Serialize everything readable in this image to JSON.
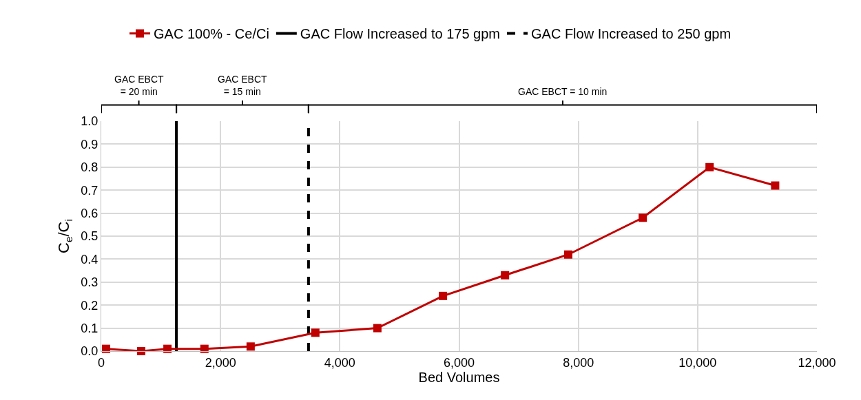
{
  "chart_data": {
    "type": "line",
    "xlabel": "Bed Volumes",
    "ylabel": "C$_{e}$/C$_{i}$",
    "x": [
      80,
      670,
      1110,
      1730,
      2505,
      3590,
      4630,
      5730,
      6770,
      7830,
      9080,
      10200,
      11300
    ],
    "series": [
      {
        "name": "GAC 100% - Ce/Ci",
        "color": "#c00000",
        "values": [
          0.01,
          0.0,
          0.01,
          0.01,
          0.02,
          0.08,
          0.1,
          0.24,
          0.33,
          0.42,
          0.58,
          0.8,
          0.72
        ]
      }
    ],
    "xlim": [
      0,
      12000
    ],
    "xticks": [
      {
        "value": 0,
        "label": "0"
      },
      {
        "value": 2000,
        "label": "2,000"
      },
      {
        "value": 4000,
        "label": "4,000"
      },
      {
        "value": 6000,
        "label": "6,000"
      },
      {
        "value": 8000,
        "label": "8,000"
      },
      {
        "value": 10000,
        "label": "10,000"
      },
      {
        "value": 12000,
        "label": "12,000"
      }
    ],
    "ylim": [
      0,
      1.0
    ],
    "yticks": [
      {
        "value": 0,
        "label": "0.0"
      },
      {
        "value": 0.1,
        "label": "0.1"
      },
      {
        "value": 0.2,
        "label": "0.2"
      },
      {
        "value": 0.3,
        "label": "0.3"
      },
      {
        "value": 0.4,
        "label": "0.4"
      },
      {
        "value": 0.5,
        "label": "0.5"
      },
      {
        "value": 0.6,
        "label": "0.6"
      },
      {
        "value": 0.7,
        "label": "0.7"
      },
      {
        "value": 0.8,
        "label": "0.8"
      },
      {
        "value": 0.9,
        "label": "0.9"
      },
      {
        "value": 1.0,
        "label": "1.0"
      }
    ],
    "ref_lines": [
      {
        "axis": "x",
        "value": 1260,
        "label": "GAC Flow Increased to 175 gpm",
        "color": "#000000",
        "line_style": "solid"
      },
      {
        "axis": "x",
        "value": 3475,
        "label": "GAC Flow Increased to 250 gpm",
        "color": "#000000",
        "line_style": "dashed"
      }
    ],
    "annotations": [
      "GAC EBCT\n= 20 min",
      "GAC EBCT\n= 15 min",
      "GAC EBCT = 10 min"
    ],
    "grid": true,
    "legend": "top",
    "marker": "square",
    "line_style": "solid"
  }
}
